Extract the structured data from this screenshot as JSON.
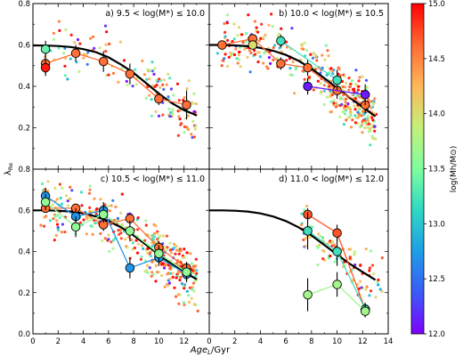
{
  "chart_data": {
    "type": "scatter",
    "xlabel": "Age_L/Gyr",
    "xlabel_main": "Age",
    "xlabel_sub": "L",
    "xlabel_unit": "/Gyr",
    "ylabel": "λ_Re",
    "ylabel_main": "λ",
    "ylabel_sub": "Re",
    "xlim": [
      0,
      14
    ],
    "ylim": [
      0,
      0.8
    ],
    "xticks": [
      "0",
      "2",
      "4",
      "6",
      "8",
      "10",
      "12",
      "14"
    ],
    "yticks": [
      "0.0",
      "0.2",
      "0.4",
      "0.6",
      "0.8"
    ],
    "colorbar": {
      "label": "log(M_h/M_⊙)",
      "label_text": "log(Mh/M⊙)",
      "range": [
        12.0,
        15.0
      ],
      "ticks": [
        "12.0",
        "12.5",
        "13.0",
        "13.5",
        "14.0",
        "14.5",
        "15.0"
      ],
      "colormap": [
        "#7f00ff",
        "#3a5bf8",
        "#1e9ee6",
        "#2fd9c4",
        "#7ffd9e",
        "#c4f07a",
        "#ffb75a",
        "#ff6a33",
        "#ff0000"
      ]
    },
    "panels": [
      {
        "title": "a) 9.5 < log(M*) ≤ 10.0",
        "fit": {
          "x": [
            0,
            1,
            2,
            3,
            4,
            5,
            6,
            7,
            8,
            9,
            10,
            11,
            12,
            13
          ],
          "y": [
            0.598,
            0.597,
            0.595,
            0.59,
            0.58,
            0.565,
            0.54,
            0.505,
            0.465,
            0.415,
            0.365,
            0.32,
            0.285,
            0.26
          ]
        },
        "binned": [
          {
            "mh": 14.6,
            "points": [
              {
                "x": 1.0,
                "y": 0.51,
                "err": 0.05
              },
              {
                "x": 3.4,
                "y": 0.56,
                "err": 0.04
              },
              {
                "x": 5.6,
                "y": 0.52,
                "err": 0.05
              },
              {
                "x": 7.7,
                "y": 0.46,
                "err": 0.05
              },
              {
                "x": 10.0,
                "y": 0.34,
                "err": 0.03
              },
              {
                "x": 12.2,
                "y": 0.31,
                "err": 0.07
              }
            ]
          },
          {
            "mh": 13.4,
            "points": [
              {
                "x": 1.0,
                "y": 0.58,
                "err": 0.04
              }
            ]
          },
          {
            "mh": 14.9,
            "points": [
              {
                "x": 1.0,
                "y": 0.49,
                "err": 0.04
              }
            ]
          }
        ]
      },
      {
        "title": "b) 10.0 < log(M*) ≤ 10.5",
        "fit": {
          "x": [
            0,
            1,
            2,
            3,
            4,
            5,
            6,
            7,
            8,
            9,
            10,
            11,
            12,
            13
          ],
          "y": [
            0.6,
            0.6,
            0.598,
            0.594,
            0.586,
            0.572,
            0.552,
            0.523,
            0.485,
            0.44,
            0.392,
            0.345,
            0.3,
            0.255
          ]
        },
        "binned": [
          {
            "mh": 14.6,
            "points": [
              {
                "x": 1.0,
                "y": 0.6,
                "err": 0.02
              },
              {
                "x": 3.4,
                "y": 0.63,
                "err": 0.02
              },
              {
                "x": 5.6,
                "y": 0.51,
                "err": 0.03
              },
              {
                "x": 7.7,
                "y": 0.49,
                "err": 0.04
              },
              {
                "x": 10.0,
                "y": 0.38,
                "err": 0.04
              },
              {
                "x": 12.2,
                "y": 0.31,
                "err": 0.04
              }
            ]
          },
          {
            "mh": 13.2,
            "points": [
              {
                "x": 5.6,
                "y": 0.62,
                "err": 0.03
              },
              {
                "x": 10.0,
                "y": 0.43,
                "err": 0.05
              }
            ]
          },
          {
            "mh": 12.1,
            "points": [
              {
                "x": 7.7,
                "y": 0.4,
                "err": 0.04
              },
              {
                "x": 12.2,
                "y": 0.36,
                "err": 0.05
              }
            ]
          },
          {
            "mh": 14.0,
            "points": [
              {
                "x": 3.4,
                "y": 0.6,
                "err": 0.02
              }
            ]
          }
        ]
      },
      {
        "title": "c) 10.5 < log(M*) ≤ 11.0",
        "fit": {
          "x": [
            0,
            1,
            2,
            3,
            4,
            5,
            6,
            7,
            8,
            9,
            10,
            11,
            12,
            13
          ],
          "y": [
            0.6,
            0.6,
            0.598,
            0.594,
            0.585,
            0.57,
            0.548,
            0.517,
            0.478,
            0.432,
            0.385,
            0.34,
            0.3,
            0.265
          ]
        },
        "binned": [
          {
            "mh": 14.6,
            "points": [
              {
                "x": 1.0,
                "y": 0.61,
                "err": 0.02
              },
              {
                "x": 3.4,
                "y": 0.61,
                "err": 0.02
              },
              {
                "x": 5.6,
                "y": 0.53,
                "err": 0.03
              },
              {
                "x": 7.7,
                "y": 0.56,
                "err": 0.03
              },
              {
                "x": 10.0,
                "y": 0.42,
                "err": 0.03
              },
              {
                "x": 12.2,
                "y": 0.32,
                "err": 0.03
              }
            ]
          },
          {
            "mh": 12.7,
            "points": [
              {
                "x": 1.0,
                "y": 0.67,
                "err": 0.04
              },
              {
                "x": 3.4,
                "y": 0.57,
                "err": 0.04
              },
              {
                "x": 5.6,
                "y": 0.6,
                "err": 0.04
              },
              {
                "x": 7.7,
                "y": 0.32,
                "err": 0.05
              },
              {
                "x": 10.0,
                "y": 0.37,
                "err": 0.04
              },
              {
                "x": 12.2,
                "y": 0.29,
                "err": 0.04
              }
            ]
          },
          {
            "mh": 13.6,
            "points": [
              {
                "x": 1.0,
                "y": 0.64,
                "err": 0.04
              },
              {
                "x": 3.4,
                "y": 0.52,
                "err": 0.05
              },
              {
                "x": 5.6,
                "y": 0.58,
                "err": 0.04
              },
              {
                "x": 7.7,
                "y": 0.5,
                "err": 0.05
              },
              {
                "x": 10.0,
                "y": 0.39,
                "err": 0.04
              },
              {
                "x": 12.2,
                "y": 0.3,
                "err": 0.04
              }
            ]
          }
        ]
      },
      {
        "title": "d) 11.0 < log(M*) ≤ 12.0",
        "fit": {
          "x": [
            0,
            1,
            2,
            3,
            4,
            5,
            6,
            7,
            8,
            9,
            10,
            11,
            12,
            13
          ],
          "y": [
            0.6,
            0.6,
            0.598,
            0.594,
            0.585,
            0.57,
            0.548,
            0.517,
            0.478,
            0.432,
            0.385,
            0.34,
            0.3,
            0.262
          ]
        },
        "binned": [
          {
            "mh": 14.7,
            "points": [
              {
                "x": 7.7,
                "y": 0.58,
                "err": 0.03
              },
              {
                "x": 10.0,
                "y": 0.49,
                "err": 0.04
              },
              {
                "x": 12.2,
                "y": 0.12,
                "err": 0.03
              }
            ]
          },
          {
            "mh": 13.2,
            "points": [
              {
                "x": 7.7,
                "y": 0.5,
                "err": 0.09
              },
              {
                "x": 10.0,
                "y": 0.4,
                "err": 0.07
              },
              {
                "x": 12.2,
                "y": 0.12,
                "err": 0.03
              }
            ]
          },
          {
            "mh": 13.7,
            "points": [
              {
                "x": 7.7,
                "y": 0.19,
                "err": 0.08
              },
              {
                "x": 10.0,
                "y": 0.24,
                "err": 0.06
              },
              {
                "x": 12.2,
                "y": 0.11,
                "err": 0.03
              }
            ]
          }
        ]
      }
    ]
  }
}
